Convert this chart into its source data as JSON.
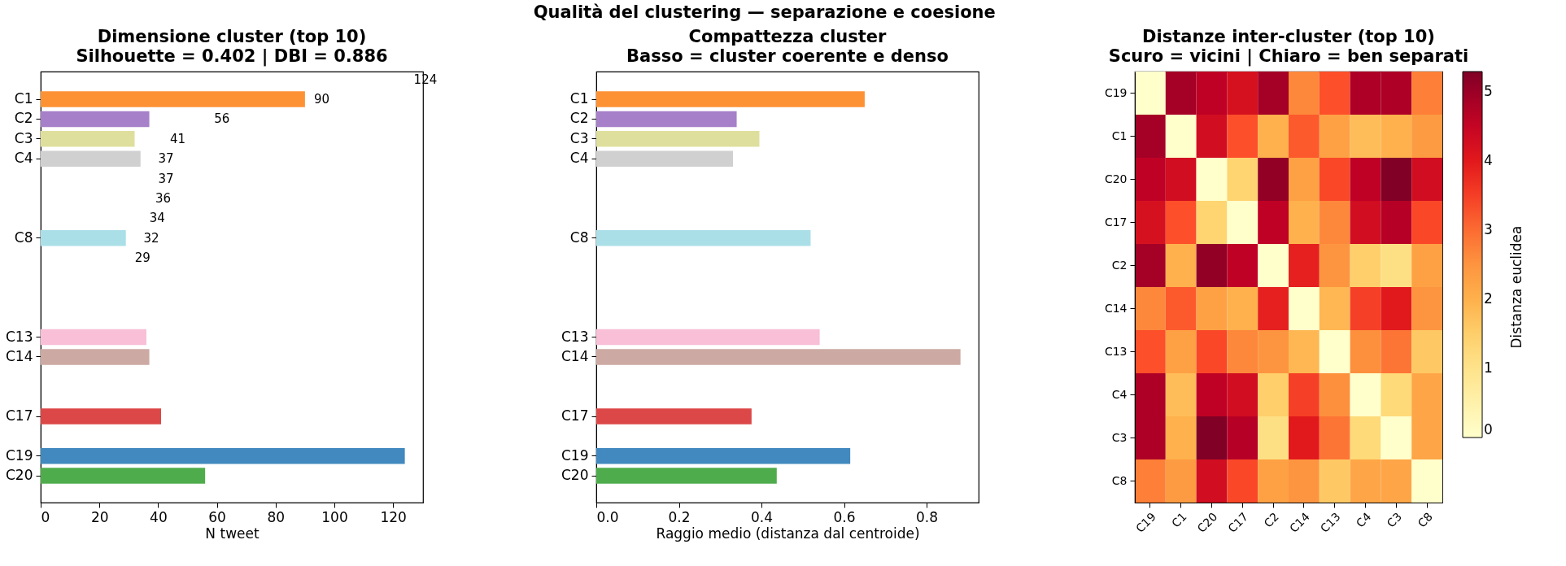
{
  "chart_data": [
    {
      "type": "other",
      "title": "Qualità del clustering — separazione e coesione"
    },
    {
      "type": "bar",
      "orientation": "horizontal",
      "title": "Dimensione cluster (top 10)",
      "subtitle": "Silhouette = 0.402  |  DBI = 0.886",
      "xlabel": "N tweet",
      "categories": [
        null,
        "C1",
        "C2",
        "C3",
        "C4",
        null,
        null,
        null,
        "C8",
        null,
        null,
        null,
        null,
        "C13",
        "C14",
        null,
        null,
        "C17",
        null,
        "C19",
        "C20"
      ],
      "values": [
        null,
        90,
        37,
        32,
        34,
        null,
        null,
        null,
        29,
        null,
        null,
        null,
        null,
        36,
        37,
        null,
        null,
        41,
        null,
        124,
        56
      ],
      "colors": [
        null,
        "#fd9235",
        "#a680c8",
        "#dfdf9d",
        "#d0d0d0",
        null,
        null,
        null,
        "#abdfe8",
        null,
        null,
        null,
        null,
        "#f8bfd7",
        "#cca9a2",
        null,
        null,
        "#dc4747",
        null,
        "#4189bf",
        "#4fac4c"
      ],
      "xlim": [
        0,
        130.2
      ],
      "xticks": [
        0,
        20,
        40,
        60,
        80,
        100,
        120
      ],
      "annotations": [
        "124",
        "90",
        "56",
        "41",
        "37",
        "37",
        "36",
        "34",
        "32",
        "29"
      ]
    },
    {
      "type": "bar",
      "orientation": "horizontal",
      "title": "Compattezza cluster",
      "subtitle": "Basso = cluster coerente e denso",
      "xlabel": "Raggio medio (distanza dal centroide)",
      "categories": [
        null,
        "C1",
        "C2",
        "C3",
        "C4",
        null,
        null,
        null,
        "C8",
        null,
        null,
        null,
        null,
        "C13",
        "C14",
        null,
        null,
        "C17",
        null,
        "C19",
        "C20"
      ],
      "values": [
        null,
        0.65,
        0.34,
        0.395,
        0.331,
        null,
        null,
        null,
        0.519,
        null,
        null,
        null,
        null,
        0.541,
        0.882,
        null,
        null,
        0.376,
        null,
        0.615,
        0.437
      ],
      "colors": [
        null,
        "#fd9235",
        "#a680c8",
        "#dfdf9d",
        "#d0d0d0",
        null,
        null,
        null,
        "#abdfe8",
        null,
        null,
        null,
        null,
        "#f8bfd7",
        "#cca9a2",
        null,
        null,
        "#dc4747",
        null,
        "#4189bf",
        "#4fac4c"
      ],
      "xlim": [
        0,
        0.926
      ],
      "xticks": [
        {
          "value": 0,
          "label": "0.0"
        },
        0.2,
        0.4,
        0.6,
        0.8
      ]
    },
    {
      "type": "heatmap",
      "title": "Distanze inter-cluster (top 10)",
      "subtitle": "Scuro = vicini  |  Chiaro = ben separati",
      "clabel": "Distanza euclidea",
      "categories": [
        "C19",
        "C1",
        "C20",
        "C17",
        "C2",
        "C14",
        "C13",
        "C4",
        "C3",
        "C8"
      ],
      "y_categories": [
        "C19",
        "C1",
        "C20",
        "C17",
        "C2",
        "C14",
        "C13",
        "C4",
        "C3",
        "C8"
      ],
      "cells": [
        [
          0,
          4.9,
          4.6,
          4.2,
          4.9,
          2.7,
          3.3,
          4.8,
          4.8,
          2.8
        ],
        [
          4.9,
          0,
          4.3,
          3.3,
          2.0,
          3.2,
          2.3,
          1.8,
          2.0,
          2.4
        ],
        [
          4.6,
          4.3,
          0,
          1.4,
          5.1,
          2.3,
          3.4,
          4.6,
          5.3,
          4.3
        ],
        [
          4.2,
          3.3,
          1.4,
          0,
          4.6,
          2.0,
          2.7,
          4.3,
          4.7,
          3.4
        ],
        [
          4.9,
          2.0,
          5.1,
          4.6,
          0,
          3.9,
          2.5,
          1.5,
          1.1,
          2.3
        ],
        [
          2.7,
          3.2,
          2.3,
          2.0,
          3.9,
          0,
          1.9,
          3.5,
          4.0,
          2.5
        ],
        [
          3.3,
          2.3,
          3.4,
          2.7,
          2.5,
          1.9,
          0,
          2.6,
          2.9,
          1.6
        ],
        [
          4.8,
          1.8,
          4.6,
          4.3,
          1.5,
          3.5,
          2.6,
          0,
          1.3,
          2.2
        ],
        [
          4.8,
          2.0,
          5.3,
          4.7,
          1.1,
          4.0,
          2.9,
          1.3,
          0,
          2.2
        ],
        [
          2.8,
          2.4,
          4.3,
          3.4,
          2.3,
          2.5,
          1.6,
          2.2,
          2.2,
          0
        ]
      ],
      "clim": [
        0,
        5.3
      ],
      "cticks": [
        0,
        1,
        2,
        3,
        4,
        5
      ]
    }
  ]
}
